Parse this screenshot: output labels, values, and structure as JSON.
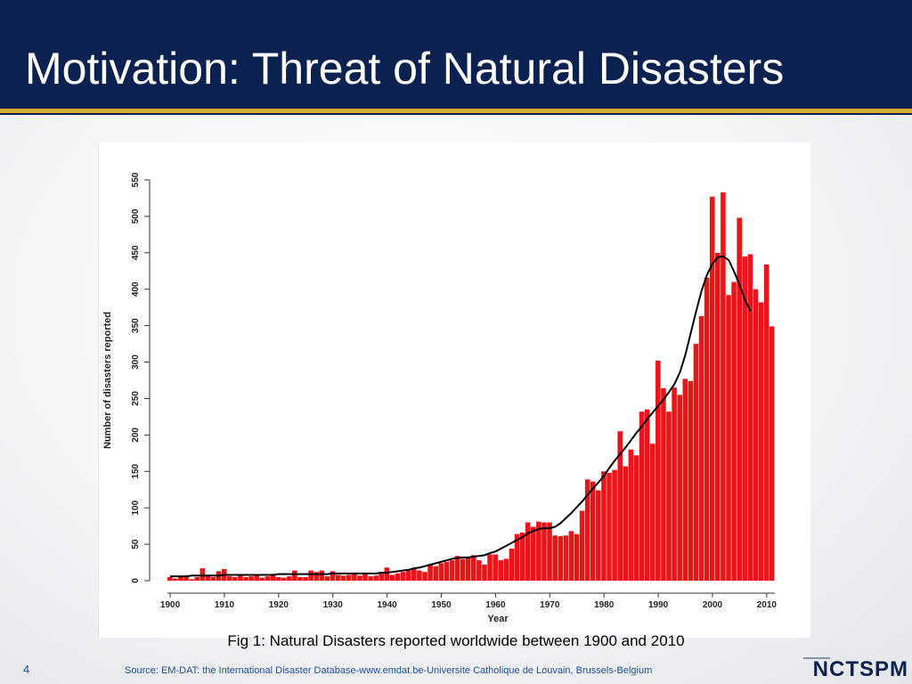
{
  "slide": {
    "title": "Motivation: Threat of Natural Disasters",
    "caption": "Fig 1: Natural Disasters reported worldwide between 1900 and 2010",
    "page_number": "4",
    "source": "Source: EM-DAT: the International Disaster Database-www.emdat.be-Universite Catholique de Louvain, Brussels-Belgium",
    "logo_text": "NCTSPM"
  },
  "colors": {
    "header_bg": "#0b2150",
    "accent_gold": "#d3b034",
    "bar_fill": "#e8161b",
    "trend_line": "#000000"
  },
  "chart_data": {
    "type": "bar",
    "xlabel": "Year",
    "ylabel": "Number of disasters reported",
    "ylim": [
      0,
      550
    ],
    "xlim": [
      1900,
      2011
    ],
    "y_ticks": [
      0,
      50,
      100,
      150,
      200,
      250,
      300,
      350,
      400,
      450,
      500,
      550
    ],
    "x_ticks": [
      1900,
      1910,
      1920,
      1930,
      1940,
      1950,
      1960,
      1970,
      1980,
      1990,
      2000,
      2010
    ],
    "grid": false,
    "legend": "none",
    "x": [
      1900,
      1901,
      1902,
      1903,
      1904,
      1905,
      1906,
      1907,
      1908,
      1909,
      1910,
      1911,
      1912,
      1913,
      1914,
      1915,
      1916,
      1917,
      1918,
      1919,
      1920,
      1921,
      1922,
      1923,
      1924,
      1925,
      1926,
      1927,
      1928,
      1929,
      1930,
      1931,
      1932,
      1933,
      1934,
      1935,
      1936,
      1937,
      1938,
      1939,
      1940,
      1941,
      1942,
      1943,
      1944,
      1945,
      1946,
      1947,
      1948,
      1949,
      1950,
      1951,
      1952,
      1953,
      1954,
      1955,
      1956,
      1957,
      1958,
      1959,
      1960,
      1961,
      1962,
      1963,
      1964,
      1965,
      1966,
      1967,
      1968,
      1969,
      1970,
      1971,
      1972,
      1973,
      1974,
      1975,
      1976,
      1977,
      1978,
      1979,
      1980,
      1981,
      1982,
      1983,
      1984,
      1985,
      1986,
      1987,
      1988,
      1989,
      1990,
      1991,
      1992,
      1993,
      1994,
      1995,
      1996,
      1997,
      1998,
      1999,
      2000,
      2001,
      2002,
      2003,
      2004,
      2005,
      2006,
      2007,
      2008,
      2009,
      2010,
      2011
    ],
    "values": [
      5,
      3,
      6,
      7,
      2,
      5,
      17,
      6,
      5,
      13,
      16,
      6,
      5,
      8,
      5,
      6,
      8,
      4,
      6,
      8,
      5,
      4,
      6,
      14,
      5,
      5,
      14,
      12,
      14,
      6,
      13,
      8,
      7,
      8,
      9,
      7,
      9,
      6,
      7,
      12,
      18,
      8,
      10,
      12,
      14,
      16,
      14,
      12,
      22,
      20,
      24,
      26,
      28,
      34,
      30,
      32,
      35,
      28,
      22,
      36,
      36,
      28,
      30,
      44,
      64,
      66,
      80,
      74,
      81,
      80,
      80,
      62,
      61,
      62,
      68,
      64,
      96,
      139,
      136,
      124,
      150,
      148,
      152,
      205,
      157,
      180,
      172,
      232,
      235,
      188,
      302,
      264,
      232,
      265,
      255,
      277,
      274,
      325,
      363,
      416,
      527,
      450,
      533,
      392,
      410,
      498,
      445,
      448,
      400,
      382,
      434,
      349
    ],
    "trend": [
      6,
      6,
      6,
      6,
      7,
      7,
      7,
      7,
      7,
      7,
      8,
      8,
      8,
      8,
      8,
      8,
      8,
      8,
      8,
      8,
      9,
      9,
      9,
      9,
      9,
      9,
      9,
      9,
      9,
      9,
      10,
      10,
      10,
      10,
      10,
      10,
      10,
      10,
      10,
      11,
      11,
      12,
      13,
      14,
      15,
      17,
      18,
      20,
      22,
      24,
      26,
      28,
      30,
      31,
      32,
      32,
      33,
      34,
      35,
      38,
      40,
      44,
      48,
      52,
      56,
      60,
      65,
      68,
      71,
      72,
      72,
      74,
      79,
      86,
      93,
      101,
      109,
      118,
      127,
      135,
      144,
      155,
      165,
      174,
      183,
      193,
      203,
      212,
      222,
      231,
      240,
      249,
      259,
      270,
      286,
      310,
      340,
      370,
      398,
      420,
      435,
      444,
      445,
      440,
      424,
      406,
      385,
      370
    ],
    "trend_start_year": 1900
  }
}
